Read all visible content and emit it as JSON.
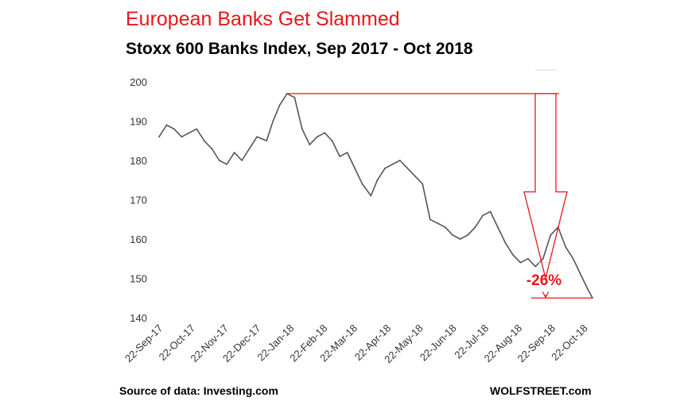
{
  "title": "European Banks Get Slammed",
  "subtitle": "Stoxx 600 Banks Index, Sep 2017 - Oct 2018",
  "source": "Source of data: Investing.com",
  "brand": "WOLFSTREET.com",
  "colors": {
    "title": "#e8161b",
    "series": "#555555",
    "annotation": "#e8161b",
    "grid": "#d9d9d9"
  },
  "chart_data": {
    "type": "line",
    "ylim": [
      140,
      200
    ],
    "yticks": [
      "140",
      "150",
      "160",
      "170",
      "180",
      "190",
      "200"
    ],
    "grid": false,
    "x_start": "2017-09-18",
    "x_end": "2018-10-26",
    "xtick_dates": [
      "2017-09-22",
      "2017-10-22",
      "2017-11-22",
      "2017-12-22",
      "2018-01-22",
      "2018-02-22",
      "2018-03-22",
      "2018-04-22",
      "2018-05-22",
      "2018-06-22",
      "2018-07-22",
      "2018-08-22",
      "2018-09-22",
      "2018-10-22"
    ],
    "xtick_labels": [
      "22-Sep-17",
      "22-Oct-17",
      "22-Nov-17",
      "22-Dec-17",
      "22-Jan-18",
      "22-Feb-18",
      "22-Mar-18",
      "22-Apr-18",
      "22-May-18",
      "22-Jun-18",
      "22-Jul-18",
      "22-Aug-18",
      "22-Sep-18",
      "22-Oct-18"
    ],
    "series": [
      {
        "x": [
          "2017-09-18",
          "2017-09-25",
          "2017-10-02",
          "2017-10-09",
          "2017-10-16",
          "2017-10-23",
          "2017-10-30",
          "2017-11-06",
          "2017-11-13",
          "2017-11-20",
          "2017-11-27",
          "2017-12-04",
          "2017-12-11",
          "2017-12-18",
          "2017-12-27",
          "2018-01-02",
          "2018-01-08",
          "2018-01-15",
          "2018-01-22",
          "2018-01-29",
          "2018-02-05",
          "2018-02-12",
          "2018-02-19",
          "2018-02-26",
          "2018-03-05",
          "2018-03-12",
          "2018-03-19",
          "2018-03-26",
          "2018-04-03",
          "2018-04-09",
          "2018-04-16",
          "2018-04-23",
          "2018-04-30",
          "2018-05-07",
          "2018-05-14",
          "2018-05-21",
          "2018-05-28",
          "2018-06-04",
          "2018-06-11",
          "2018-06-18",
          "2018-06-25",
          "2018-07-02",
          "2018-07-09",
          "2018-07-16",
          "2018-07-23",
          "2018-07-30",
          "2018-08-06",
          "2018-08-13",
          "2018-08-20",
          "2018-08-27",
          "2018-09-03",
          "2018-09-10",
          "2018-09-17",
          "2018-09-24",
          "2018-10-01",
          "2018-10-08",
          "2018-10-15",
          "2018-10-22",
          "2018-10-26"
        ],
        "values": [
          186,
          189,
          188,
          186,
          187,
          188,
          185,
          183,
          180,
          179,
          182,
          180,
          183,
          186,
          185,
          190,
          194,
          197,
          196,
          188,
          184,
          186,
          187,
          185,
          181,
          182,
          178,
          174,
          171,
          175,
          178,
          179,
          180,
          178,
          176,
          174,
          165,
          164,
          163,
          161,
          160,
          161,
          163,
          166,
          167,
          163,
          159,
          156,
          154,
          155,
          153,
          155,
          161,
          163,
          158,
          155,
          151,
          147,
          145
        ]
      }
    ],
    "annotations": [
      {
        "label": "-26%",
        "from_value": 197,
        "to_value": 145
      }
    ]
  }
}
